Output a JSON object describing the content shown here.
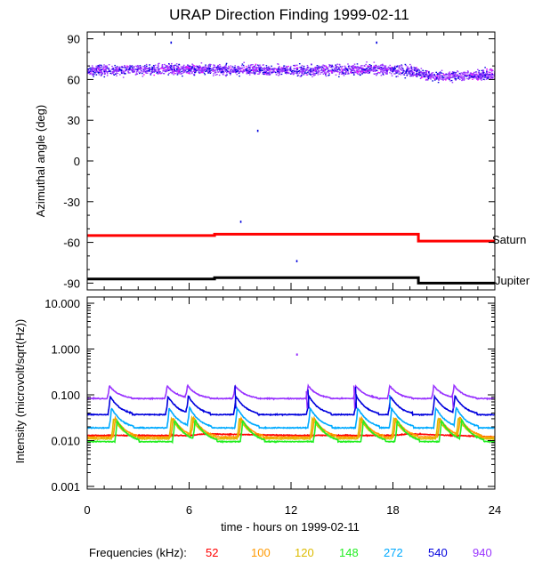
{
  "title": "URAP Direction Finding  1999-02-11",
  "xlabel": "time - hours on 1999-02-11",
  "legend": {
    "label": "Frequencies (kHz):",
    "items": [
      {
        "text": "52",
        "color": "#ff0000"
      },
      {
        "text": "100",
        "color": "#ff9900"
      },
      {
        "text": "120",
        "color": "#ddbb00"
      },
      {
        "text": "148",
        "color": "#22ee22"
      },
      {
        "text": "272",
        "color": "#00aaff"
      },
      {
        "text": "540",
        "color": "#0000dd"
      },
      {
        "text": "940",
        "color": "#9933ff"
      }
    ]
  },
  "chart_data": [
    {
      "type": "scatter",
      "ylabel": "Azimuthal angle (deg)",
      "xlim": [
        0,
        24
      ],
      "ylim": [
        -95,
        95
      ],
      "xticks": [
        "0",
        "6",
        "12",
        "18",
        "24"
      ],
      "yticks": [
        "90",
        "60",
        "30",
        "0",
        "-30",
        "-60",
        "-90"
      ],
      "series": [
        {
          "name": "Saturn",
          "color": "#ff0000",
          "type": "step",
          "points": [
            [
              0,
              -55
            ],
            [
              7.5,
              -55
            ],
            [
              7.5,
              -54
            ],
            [
              19.5,
              -54
            ],
            [
              19.5,
              -59
            ],
            [
              24,
              -59
            ]
          ]
        },
        {
          "name": "Jupiter",
          "color": "#000000",
          "type": "step",
          "points": [
            [
              0,
              -87
            ],
            [
              7.5,
              -87
            ],
            [
              7.5,
              -86
            ],
            [
              19.5,
              -86
            ],
            [
              19.5,
              -90
            ],
            [
              24,
              -90
            ]
          ]
        },
        {
          "type": "scatter-band",
          "colors": [
            "#9933ff",
            "#0000dd",
            "#ff00ff"
          ],
          "profile_x": [
            0,
            4,
            8,
            12,
            16,
            19,
            20,
            22,
            24
          ],
          "profile_y": [
            67,
            68,
            68,
            67,
            68,
            67,
            63,
            63,
            64
          ],
          "spread": 12
        }
      ],
      "outliers": [
        [
          10,
          23
        ],
        [
          9,
          -44
        ],
        [
          12.3,
          -73
        ],
        [
          4.9,
          88
        ],
        [
          17,
          88
        ]
      ]
    },
    {
      "type": "line",
      "ylabel": "Intensity (microvolt/sqrt(Hz))",
      "scale": "log",
      "xlim": [
        0,
        24
      ],
      "ylim": [
        0.001,
        10
      ],
      "xticks": [
        "0",
        "6",
        "12",
        "18",
        "24"
      ],
      "yticks": [
        "10.000",
        "1.000",
        "0.100",
        "0.010",
        "0.001"
      ],
      "burst_times": [
        1.3,
        4.7,
        5.9,
        8.7,
        13.0,
        15.8,
        17.8,
        20.4,
        21.6
      ],
      "series": [
        {
          "name": "52",
          "color": "#ff0000",
          "base": 0.013,
          "x": [
            0,
            6,
            7,
            12,
            18,
            19,
            24
          ],
          "y": [
            0.013,
            0.013,
            0.014,
            0.013,
            0.013,
            0.014,
            0.012
          ]
        },
        {
          "name": "100",
          "color": "#ff9900",
          "base": 0.012,
          "x": [
            0,
            24
          ],
          "y": [
            0.012,
            0.012
          ]
        },
        {
          "name": "120",
          "color": "#ddbb00",
          "base": 0.011,
          "x": [
            0,
            24
          ],
          "y": [
            0.011,
            0.011
          ]
        },
        {
          "name": "148",
          "color": "#22ee22",
          "base": 0.0095,
          "x": [
            0,
            24
          ],
          "y": [
            0.0095,
            0.0095
          ]
        },
        {
          "name": "272",
          "color": "#00aaff",
          "base": 0.019,
          "x": [
            0,
            24
          ],
          "y": [
            0.019,
            0.019
          ]
        },
        {
          "name": "540",
          "color": "#0000dd",
          "base": 0.037,
          "x": [
            0,
            24
          ],
          "y": [
            0.037,
            0.037
          ]
        },
        {
          "name": "940",
          "color": "#9933ff",
          "base": 0.083,
          "x": [
            0,
            24
          ],
          "y": [
            0.083,
            0.083
          ]
        }
      ],
      "outliers": [
        [
          12.3,
          0.8
        ]
      ]
    }
  ]
}
